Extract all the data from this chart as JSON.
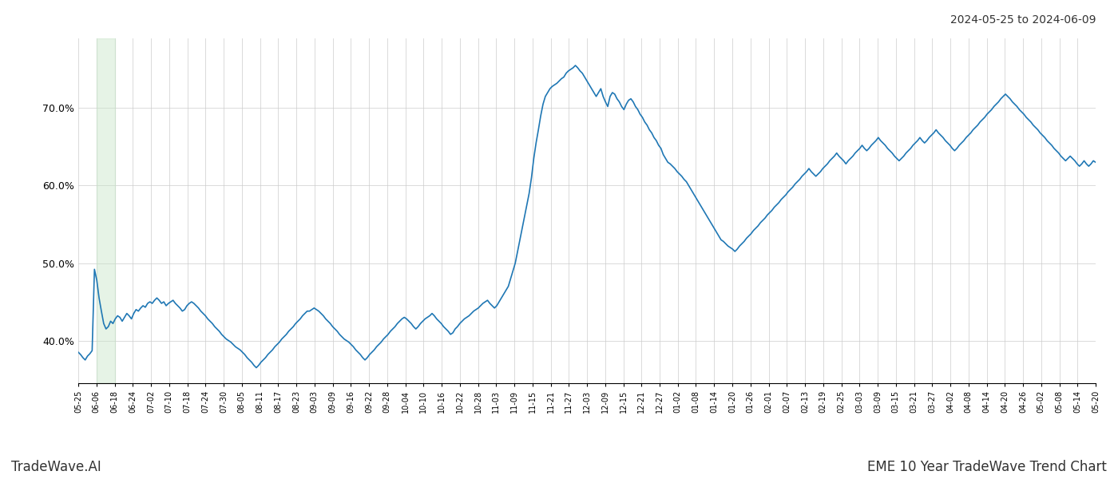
{
  "title_right": "2024-05-25 to 2024-06-09",
  "footer_left": "TradeWave.AI",
  "footer_right": "EME 10 Year TradeWave Trend Chart",
  "line_color": "#1f77b4",
  "line_width": 1.2,
  "shade_color": "#c8e6c9",
  "shade_alpha": 0.45,
  "background_color": "#ffffff",
  "grid_color": "#cccccc",
  "ylim": [
    0.345,
    0.79
  ],
  "yticks": [
    0.4,
    0.5,
    0.6,
    0.7
  ],
  "x_labels": [
    "05-25",
    "06-06",
    "06-18",
    "06-24",
    "07-02",
    "07-10",
    "07-18",
    "07-24",
    "07-30",
    "08-05",
    "08-11",
    "08-17",
    "08-23",
    "09-03",
    "09-09",
    "09-16",
    "09-22",
    "09-28",
    "10-04",
    "10-10",
    "10-16",
    "10-22",
    "10-28",
    "11-03",
    "11-09",
    "11-15",
    "11-21",
    "11-27",
    "12-03",
    "12-09",
    "12-15",
    "12-21",
    "12-27",
    "01-02",
    "01-08",
    "01-14",
    "01-20",
    "01-26",
    "02-01",
    "02-07",
    "02-13",
    "02-19",
    "02-25",
    "03-03",
    "03-09",
    "03-15",
    "03-21",
    "03-27",
    "04-02",
    "04-08",
    "04-14",
    "04-20",
    "04-26",
    "05-02",
    "05-08",
    "05-14",
    "05-20"
  ],
  "shade_x_start_label": "06-06",
  "shade_x_end_label": "06-18",
  "y_values": [
    0.385,
    0.382,
    0.378,
    0.375,
    0.38,
    0.383,
    0.387,
    0.492,
    0.478,
    0.455,
    0.438,
    0.422,
    0.415,
    0.418,
    0.425,
    0.422,
    0.428,
    0.432,
    0.43,
    0.425,
    0.43,
    0.435,
    0.432,
    0.428,
    0.435,
    0.44,
    0.438,
    0.442,
    0.445,
    0.443,
    0.448,
    0.45,
    0.448,
    0.452,
    0.455,
    0.452,
    0.448,
    0.45,
    0.445,
    0.448,
    0.45,
    0.452,
    0.448,
    0.445,
    0.442,
    0.438,
    0.44,
    0.445,
    0.448,
    0.45,
    0.448,
    0.445,
    0.442,
    0.438,
    0.435,
    0.432,
    0.428,
    0.425,
    0.422,
    0.418,
    0.415,
    0.412,
    0.408,
    0.405,
    0.402,
    0.4,
    0.398,
    0.395,
    0.392,
    0.39,
    0.388,
    0.385,
    0.382,
    0.378,
    0.375,
    0.372,
    0.368,
    0.365,
    0.368,
    0.372,
    0.375,
    0.378,
    0.382,
    0.385,
    0.388,
    0.392,
    0.395,
    0.398,
    0.402,
    0.405,
    0.408,
    0.412,
    0.415,
    0.418,
    0.422,
    0.425,
    0.428,
    0.432,
    0.435,
    0.438,
    0.438,
    0.44,
    0.442,
    0.44,
    0.438,
    0.435,
    0.432,
    0.428,
    0.425,
    0.422,
    0.418,
    0.415,
    0.412,
    0.408,
    0.405,
    0.402,
    0.4,
    0.398,
    0.395,
    0.392,
    0.388,
    0.385,
    0.382,
    0.378,
    0.375,
    0.378,
    0.382,
    0.385,
    0.388,
    0.392,
    0.395,
    0.398,
    0.402,
    0.405,
    0.408,
    0.412,
    0.415,
    0.418,
    0.422,
    0.425,
    0.428,
    0.43,
    0.428,
    0.425,
    0.422,
    0.418,
    0.415,
    0.418,
    0.422,
    0.425,
    0.428,
    0.43,
    0.432,
    0.435,
    0.432,
    0.428,
    0.425,
    0.422,
    0.418,
    0.415,
    0.412,
    0.408,
    0.41,
    0.415,
    0.418,
    0.422,
    0.425,
    0.428,
    0.43,
    0.432,
    0.435,
    0.438,
    0.44,
    0.442,
    0.445,
    0.448,
    0.45,
    0.452,
    0.448,
    0.445,
    0.442,
    0.445,
    0.45,
    0.455,
    0.46,
    0.465,
    0.47,
    0.48,
    0.49,
    0.5,
    0.515,
    0.53,
    0.545,
    0.56,
    0.575,
    0.59,
    0.61,
    0.635,
    0.655,
    0.672,
    0.69,
    0.705,
    0.715,
    0.72,
    0.725,
    0.728,
    0.73,
    0.732,
    0.735,
    0.738,
    0.74,
    0.745,
    0.748,
    0.75,
    0.752,
    0.755,
    0.752,
    0.748,
    0.745,
    0.74,
    0.735,
    0.73,
    0.725,
    0.72,
    0.715,
    0.72,
    0.725,
    0.715,
    0.708,
    0.702,
    0.715,
    0.72,
    0.718,
    0.712,
    0.708,
    0.702,
    0.698,
    0.705,
    0.71,
    0.712,
    0.708,
    0.702,
    0.698,
    0.692,
    0.688,
    0.682,
    0.678,
    0.672,
    0.668,
    0.662,
    0.658,
    0.652,
    0.648,
    0.64,
    0.635,
    0.63,
    0.628,
    0.625,
    0.622,
    0.618,
    0.615,
    0.612,
    0.608,
    0.605,
    0.6,
    0.595,
    0.59,
    0.585,
    0.58,
    0.575,
    0.57,
    0.565,
    0.56,
    0.555,
    0.55,
    0.545,
    0.54,
    0.535,
    0.53,
    0.528,
    0.525,
    0.522,
    0.52,
    0.518,
    0.515,
    0.518,
    0.522,
    0.525,
    0.528,
    0.532,
    0.535,
    0.538,
    0.542,
    0.545,
    0.548,
    0.552,
    0.555,
    0.558,
    0.562,
    0.565,
    0.568,
    0.572,
    0.575,
    0.578,
    0.582,
    0.585,
    0.588,
    0.592,
    0.595,
    0.598,
    0.602,
    0.605,
    0.608,
    0.612,
    0.615,
    0.618,
    0.622,
    0.618,
    0.615,
    0.612,
    0.615,
    0.618,
    0.622,
    0.625,
    0.628,
    0.632,
    0.635,
    0.638,
    0.642,
    0.638,
    0.635,
    0.632,
    0.628,
    0.632,
    0.635,
    0.638,
    0.642,
    0.645,
    0.648,
    0.652,
    0.648,
    0.645,
    0.648,
    0.652,
    0.655,
    0.658,
    0.662,
    0.658,
    0.655,
    0.652,
    0.648,
    0.645,
    0.642,
    0.638,
    0.635,
    0.632,
    0.635,
    0.638,
    0.642,
    0.645,
    0.648,
    0.652,
    0.655,
    0.658,
    0.662,
    0.658,
    0.655,
    0.658,
    0.662,
    0.665,
    0.668,
    0.672,
    0.668,
    0.665,
    0.662,
    0.658,
    0.655,
    0.652,
    0.648,
    0.645,
    0.648,
    0.652,
    0.655,
    0.658,
    0.662,
    0.665,
    0.668,
    0.672,
    0.675,
    0.678,
    0.682,
    0.685,
    0.688,
    0.692,
    0.695,
    0.698,
    0.702,
    0.705,
    0.708,
    0.712,
    0.715,
    0.718,
    0.715,
    0.712,
    0.708,
    0.705,
    0.702,
    0.698,
    0.695,
    0.692,
    0.688,
    0.685,
    0.682,
    0.678,
    0.675,
    0.672,
    0.668,
    0.665,
    0.662,
    0.658,
    0.655,
    0.652,
    0.648,
    0.645,
    0.642,
    0.638,
    0.635,
    0.632,
    0.635,
    0.638,
    0.635,
    0.632,
    0.628,
    0.625,
    0.628,
    0.632,
    0.628,
    0.625,
    0.628,
    0.632,
    0.63
  ]
}
